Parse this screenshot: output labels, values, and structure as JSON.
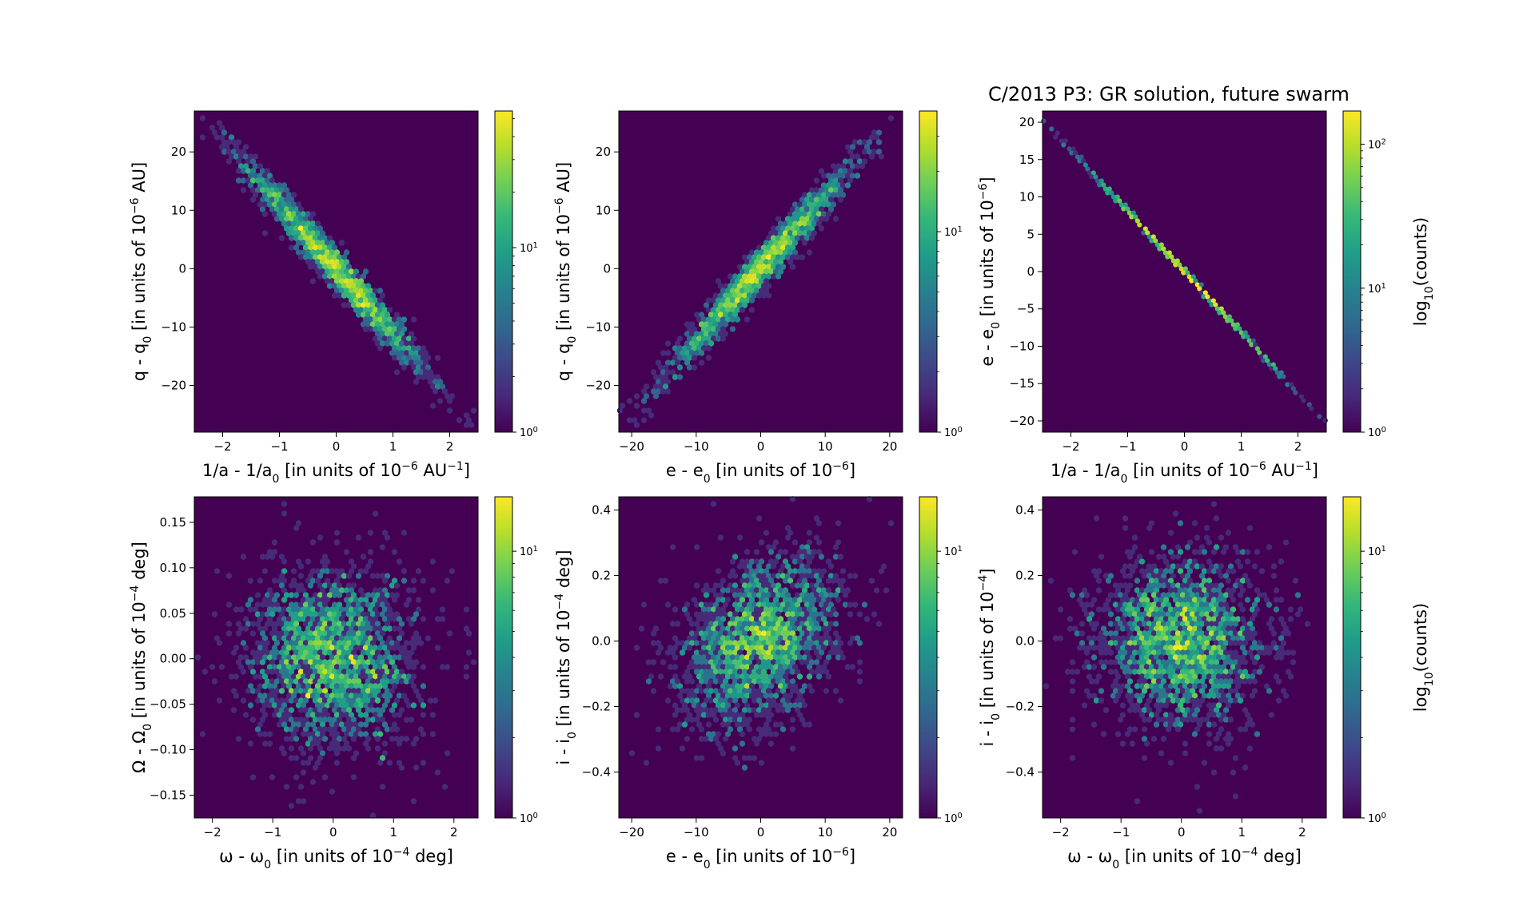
{
  "figure": {
    "title": "C/2013 P3:  GR solution, future swarm",
    "colormap": [
      "#440154",
      "#482878",
      "#3e4989",
      "#31688e",
      "#26828e",
      "#1f9e89",
      "#35b779",
      "#6ece58",
      "#b5de2b",
      "#fde725"
    ]
  },
  "chart_data": [
    {
      "type": "heatmap",
      "subtype": "hexbin",
      "xlabel": {
        "main": "1/a - 1/a",
        "sub": "0",
        "rest": " [in units of 10",
        "sup": "−6",
        "tail": " AU",
        "sup2": "−1",
        "end": "]"
      },
      "ylabel": {
        "main": "q - q",
        "sub": "0",
        "rest": " [in units of 10",
        "sup": "−6",
        "tail": " AU]"
      },
      "xlim": [
        -2.5,
        2.5
      ],
      "ylim": [
        -28,
        27
      ],
      "xticks": [
        -2,
        -1,
        0,
        1,
        2
      ],
      "yticks": [
        -20,
        -10,
        0,
        10,
        20
      ],
      "correlation": -0.98,
      "sx": 0.8,
      "sy": 9,
      "n": 1800,
      "dot": 6,
      "colorbar": {
        "scale": "log",
        "min": 1,
        "max": 55,
        "ticks": [
          {
            "base": "10",
            "exp": "0",
            "value": 1
          },
          {
            "base": "10",
            "exp": "1",
            "value": 10
          }
        ],
        "label": ""
      }
    },
    {
      "type": "heatmap",
      "subtype": "hexbin",
      "xlabel": {
        "main": "e - e",
        "sub": "0",
        "rest": " [in units of 10",
        "sup": "−6",
        "tail": "]"
      },
      "ylabel": {
        "main": "q - q",
        "sub": "0",
        "rest": " [in units of 10",
        "sup": "−6",
        "tail": " AU]"
      },
      "xlim": [
        -22,
        22
      ],
      "ylim": [
        -28,
        27
      ],
      "xticks": [
        -20,
        -10,
        0,
        10,
        20
      ],
      "yticks": [
        -20,
        -10,
        0,
        10,
        20
      ],
      "correlation": 0.98,
      "sx": 7.2,
      "sy": 9,
      "n": 1800,
      "dot": 6,
      "colorbar": {
        "scale": "log",
        "min": 1,
        "max": 40,
        "ticks": [
          {
            "base": "10",
            "exp": "0",
            "value": 1
          },
          {
            "base": "10",
            "exp": "1",
            "value": 10
          }
        ],
        "label": ""
      }
    },
    {
      "type": "heatmap",
      "subtype": "hexbin",
      "xlabel": {
        "main": "1/a - 1/a",
        "sub": "0",
        "rest": " [in units of 10",
        "sup": "−6",
        "tail": " AU",
        "sup2": "−1",
        "end": "]"
      },
      "ylabel": {
        "main": "e - e",
        "sub": "0",
        "rest": " [in units of 10",
        "sup": "−6",
        "tail": "]"
      },
      "xlim": [
        -2.5,
        2.5
      ],
      "ylim": [
        -21.5,
        21.5
      ],
      "xticks": [
        -2,
        -1,
        0,
        1,
        2
      ],
      "yticks": [
        -20,
        -15,
        -10,
        -5,
        0,
        5,
        10,
        15,
        20
      ],
      "correlation": -1.0,
      "sx": 0.8,
      "sy": 6.5,
      "n": 1800,
      "dot": 5,
      "colorbar": {
        "scale": "log",
        "min": 1,
        "max": 170,
        "ticks": [
          {
            "base": "10",
            "exp": "0",
            "value": 1
          },
          {
            "base": "10",
            "exp": "1",
            "value": 10
          },
          {
            "base": "10",
            "exp": "2",
            "value": 100
          }
        ],
        "label": "log10(counts)",
        "label_main": "log",
        "label_sub": "10",
        "label_rest": "(counts)"
      }
    },
    {
      "type": "heatmap",
      "subtype": "hexbin",
      "xlabel": {
        "main": "ω - ω",
        "sub": "0",
        "rest": " [in units of 10",
        "sup": "−4",
        "tail": " deg]"
      },
      "ylabel": {
        "main": "Ω - Ω",
        "sub": "0",
        "rest": " [in units of 10",
        "sup": "−4",
        "tail": " deg]"
      },
      "xlim": [
        -2.3,
        2.4
      ],
      "ylim": [
        -0.175,
        0.178
      ],
      "xticks": [
        -2,
        -1,
        0,
        1,
        2
      ],
      "yticks": [
        -0.15,
        -0.1,
        -0.05,
        0.0,
        0.05,
        0.1,
        0.15
      ],
      "ytick_labels": [
        "−0.15",
        "−0.10",
        "−0.05",
        "0.00",
        "0.05",
        "0.10",
        "0.15"
      ],
      "correlation": 0.0,
      "sx": 0.7,
      "sy": 0.05,
      "n": 2200,
      "dot": 6,
      "colorbar": {
        "scale": "log",
        "min": 1,
        "max": 16,
        "ticks": [
          {
            "base": "10",
            "exp": "0",
            "value": 1
          },
          {
            "base": "10",
            "exp": "1",
            "value": 10
          }
        ],
        "label": ""
      }
    },
    {
      "type": "heatmap",
      "subtype": "hexbin",
      "xlabel": {
        "main": "e - e",
        "sub": "0",
        "rest": " [in units of 10",
        "sup": "−6",
        "tail": "]"
      },
      "ylabel": {
        "main": "i - i",
        "sub": "0",
        "rest": " [in units of 10",
        "sup": "−4",
        "tail": " deg]"
      },
      "xlim": [
        -22,
        22
      ],
      "ylim": [
        -0.54,
        0.44
      ],
      "xticks": [
        -20,
        -10,
        0,
        10,
        20
      ],
      "yticks": [
        -0.4,
        -0.2,
        0.0,
        0.2,
        0.4
      ],
      "ytick_labels": [
        "−0.4",
        "−0.2",
        "0.0",
        "0.2",
        "0.4"
      ],
      "correlation": 0.35,
      "sx": 6.2,
      "sy": 0.13,
      "n": 2200,
      "dot": 6,
      "colorbar": {
        "scale": "log",
        "min": 1,
        "max": 16,
        "ticks": [
          {
            "base": "10",
            "exp": "0",
            "value": 1
          },
          {
            "base": "10",
            "exp": "1",
            "value": 10
          }
        ],
        "label": ""
      }
    },
    {
      "type": "heatmap",
      "subtype": "hexbin",
      "xlabel": {
        "main": "ω - ω",
        "sub": "0",
        "rest": " [in units of 10",
        "sup": "−4",
        "tail": " deg]"
      },
      "ylabel": {
        "main": "i - i",
        "sub": "0",
        "rest": " [in units of 10",
        "sup": "−4",
        "tail": "]"
      },
      "xlim": [
        -2.3,
        2.4
      ],
      "ylim": [
        -0.54,
        0.44
      ],
      "xticks": [
        -2,
        -1,
        0,
        1,
        2
      ],
      "yticks": [
        -0.4,
        -0.2,
        0.0,
        0.2,
        0.4
      ],
      "ytick_labels": [
        "−0.4",
        "−0.2",
        "0.0",
        "0.2",
        "0.4"
      ],
      "correlation": 0.0,
      "sx": 0.7,
      "sy": 0.13,
      "n": 2200,
      "dot": 6,
      "colorbar": {
        "scale": "log",
        "min": 1,
        "max": 16,
        "ticks": [
          {
            "base": "10",
            "exp": "0",
            "value": 1
          },
          {
            "base": "10",
            "exp": "1",
            "value": 10
          }
        ],
        "label": "log10(counts)",
        "label_main": "log",
        "label_sub": "10",
        "label_rest": "(counts)"
      }
    }
  ]
}
